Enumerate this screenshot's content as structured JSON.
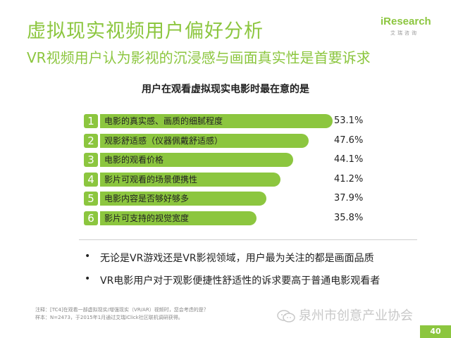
{
  "page": {
    "title": "虚拟现实视频用户偏好分析",
    "subtitle": "VR视频用户认为影视的沉浸感与画面真实性是首要诉求",
    "logo": {
      "word": "iResearch",
      "sub": "艾瑞咨询"
    },
    "page_number": "40",
    "watermark": "泉州市创意产业协会",
    "bullets": [
      "无论是VR游戏还是VR影视领域，用户最为关注的都是画面品质",
      "VR电影用户对于观影便捷性舒适性的诉求要高于普通电影观看者"
    ],
    "notes": [
      "注释：[TC4]在观看一部虚拟现实/增强现实（VR/AR）视频时，您会考虑的是？",
      "样本：N=2473，于2015年1月通过艾瑞iClick社区联机调研获得。"
    ]
  },
  "colors": {
    "accent": "#8cc63f",
    "text": "#222222"
  },
  "chart_data": {
    "type": "bar",
    "orientation": "horizontal",
    "title": "用户在观看虚拟现实电影时最在意的是",
    "categories": [
      "电影的真实感、画质的细腻程度",
      "观影舒适感（仪器佩戴舒适感）",
      "电影的观看价格",
      "影片可观看的场景便携性",
      "电影内容是否够好够多",
      "影片可支持的视觉宽度"
    ],
    "ranks": [
      "1",
      "2",
      "3",
      "4",
      "5",
      "6"
    ],
    "values": [
      53.1,
      47.6,
      44.1,
      41.2,
      37.9,
      35.8
    ],
    "value_labels": [
      "53.1%",
      "47.6%",
      "44.1%",
      "41.2%",
      "37.9%",
      "35.8%"
    ],
    "unit": "%",
    "grid": false
  }
}
